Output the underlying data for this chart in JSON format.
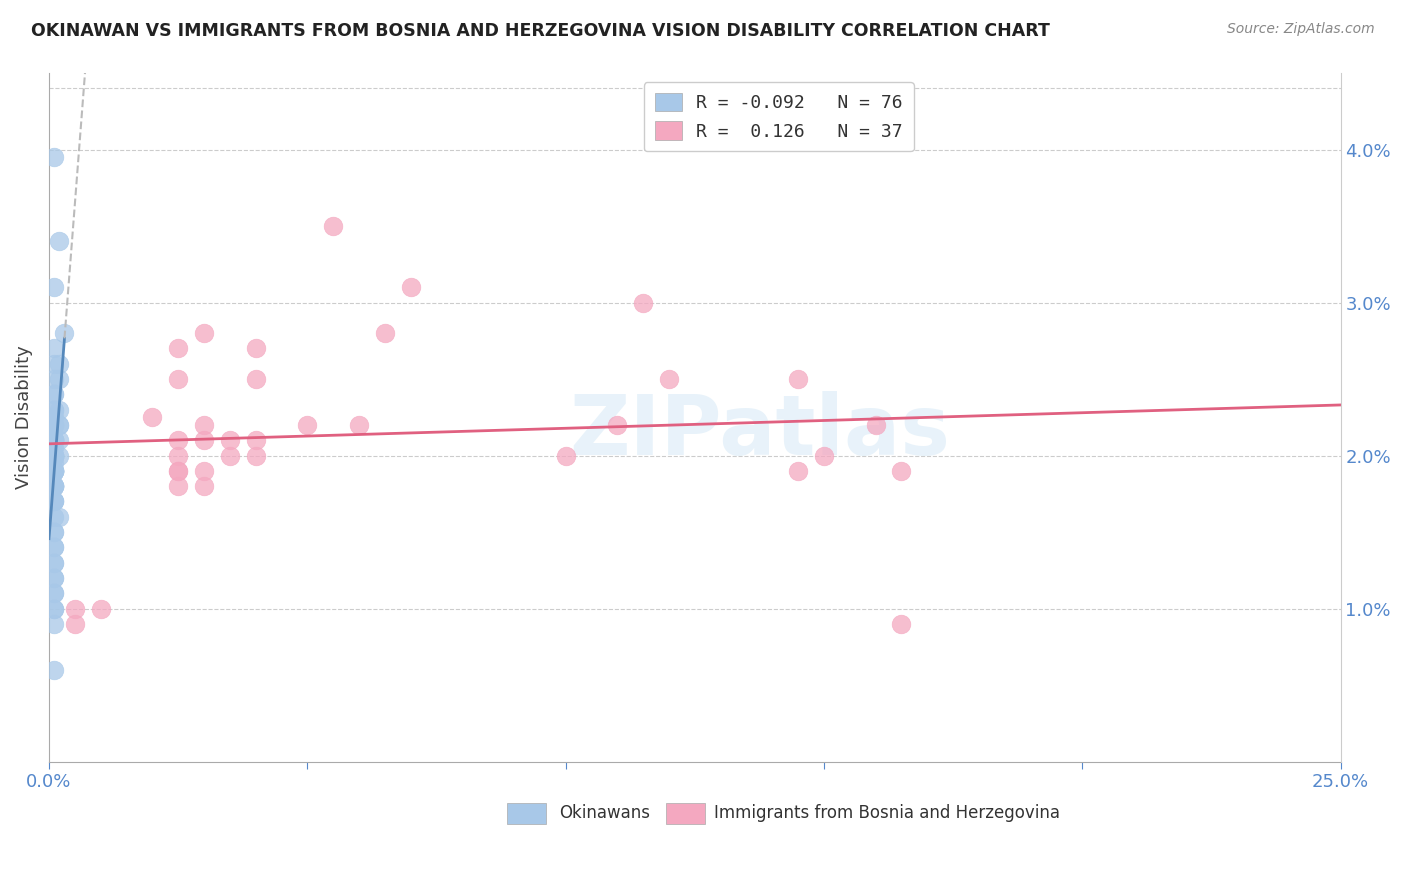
{
  "title": "OKINAWAN VS IMMIGRANTS FROM BOSNIA AND HERZEGOVINA VISION DISABILITY CORRELATION CHART",
  "source": "Source: ZipAtlas.com",
  "ylabel": "Vision Disability",
  "xlim": [
    0.0,
    0.25
  ],
  "ylim": [
    0.0,
    0.045
  ],
  "blue_color": "#a8c8e8",
  "pink_color": "#f4a8c0",
  "blue_line_color": "#5588bb",
  "pink_line_color": "#e06080",
  "watermark": "ZIPatlas",
  "blue_N": 76,
  "pink_N": 37,
  "blue_scatter_x": [
    0.001,
    0.002,
    0.001,
    0.003,
    0.001,
    0.001,
    0.002,
    0.001,
    0.002,
    0.001,
    0.001,
    0.001,
    0.002,
    0.001,
    0.001,
    0.001,
    0.002,
    0.001,
    0.001,
    0.001,
    0.002,
    0.001,
    0.001,
    0.001,
    0.001,
    0.002,
    0.001,
    0.001,
    0.001,
    0.001,
    0.001,
    0.001,
    0.001,
    0.002,
    0.001,
    0.001,
    0.001,
    0.001,
    0.001,
    0.001,
    0.001,
    0.001,
    0.001,
    0.001,
    0.001,
    0.001,
    0.001,
    0.001,
    0.001,
    0.001,
    0.001,
    0.001,
    0.001,
    0.001,
    0.001,
    0.001,
    0.001,
    0.001,
    0.001,
    0.001,
    0.001,
    0.002,
    0.001,
    0.001,
    0.001,
    0.001,
    0.001,
    0.001,
    0.001,
    0.001,
    0.001,
    0.001,
    0.001,
    0.001,
    0.001,
    0.001
  ],
  "blue_scatter_y": [
    0.0395,
    0.034,
    0.031,
    0.028,
    0.027,
    0.026,
    0.026,
    0.025,
    0.025,
    0.024,
    0.024,
    0.023,
    0.023,
    0.023,
    0.0225,
    0.022,
    0.022,
    0.022,
    0.022,
    0.022,
    0.022,
    0.021,
    0.021,
    0.021,
    0.021,
    0.021,
    0.021,
    0.021,
    0.021,
    0.021,
    0.0205,
    0.02,
    0.02,
    0.02,
    0.02,
    0.02,
    0.02,
    0.02,
    0.02,
    0.02,
    0.0195,
    0.019,
    0.019,
    0.019,
    0.019,
    0.019,
    0.019,
    0.019,
    0.019,
    0.019,
    0.018,
    0.018,
    0.018,
    0.018,
    0.018,
    0.018,
    0.018,
    0.017,
    0.017,
    0.017,
    0.016,
    0.016,
    0.015,
    0.015,
    0.014,
    0.014,
    0.013,
    0.013,
    0.012,
    0.012,
    0.011,
    0.011,
    0.01,
    0.01,
    0.009,
    0.006
  ],
  "pink_scatter_x": [
    0.055,
    0.07,
    0.065,
    0.03,
    0.025,
    0.04,
    0.025,
    0.04,
    0.02,
    0.03,
    0.05,
    0.06,
    0.04,
    0.025,
    0.035,
    0.03,
    0.04,
    0.025,
    0.035,
    0.025,
    0.03,
    0.025,
    0.03,
    0.025,
    0.005,
    0.01,
    0.005,
    0.145,
    0.16,
    0.15,
    0.165,
    0.145,
    0.12,
    0.11,
    0.1,
    0.115,
    0.165
  ],
  "pink_scatter_y": [
    0.035,
    0.031,
    0.028,
    0.028,
    0.027,
    0.027,
    0.025,
    0.025,
    0.0225,
    0.022,
    0.022,
    0.022,
    0.021,
    0.021,
    0.021,
    0.021,
    0.02,
    0.02,
    0.02,
    0.019,
    0.019,
    0.019,
    0.018,
    0.018,
    0.01,
    0.01,
    0.009,
    0.025,
    0.022,
    0.02,
    0.019,
    0.019,
    0.025,
    0.022,
    0.02,
    0.03,
    0.009
  ]
}
